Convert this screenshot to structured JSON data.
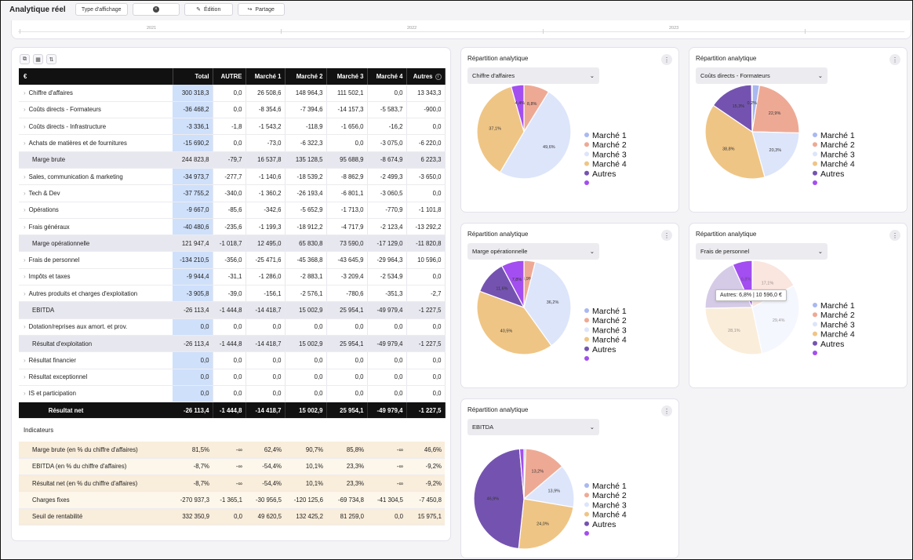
{
  "header": {
    "title": "Analytique réel",
    "display_type_label": "Type d'affichage",
    "edit_label": "Édition",
    "share_label": "Partage"
  },
  "timeline": {
    "years": [
      "2021",
      "2022",
      "2023"
    ]
  },
  "table": {
    "columns": [
      "€",
      "Total",
      "AUTRE",
      "Marché 1",
      "Marché 2",
      "Marché 3",
      "Marché 4",
      "Autres"
    ],
    "rows": [
      {
        "label": "Chiffre d'affaires",
        "type": "line",
        "values": [
          "300 318,3",
          "0,0",
          "26 508,6",
          "148 964,3",
          "111 502,1",
          "0,0",
          "13 343,3"
        ]
      },
      {
        "label": "Coûts directs - Formateurs",
        "type": "line",
        "values": [
          "-36 468,2",
          "0,0",
          "-8 354,6",
          "-7 394,6",
          "-14 157,3",
          "-5 583,7",
          "-900,0"
        ]
      },
      {
        "label": "Coûts directs - Infrastructure",
        "type": "line",
        "values": [
          "-3 336,1",
          "-1,8",
          "-1 543,2",
          "-118,9",
          "-1 656,0",
          "-16,2",
          "0,0"
        ]
      },
      {
        "label": "Achats de matières et de fournitures",
        "type": "line",
        "values": [
          "-15 690,2",
          "0,0",
          "-73,0",
          "-6 322,3",
          "0,0",
          "-3 075,0",
          "-6 220,0"
        ]
      },
      {
        "label": "Marge brute",
        "type": "sub",
        "values": [
          "244 823,8",
          "-79,7",
          "16 537,8",
          "135 128,5",
          "95 688,9",
          "-8 674,9",
          "6 223,3"
        ]
      },
      {
        "label": "Sales, communication & marketing",
        "type": "line",
        "values": [
          "-34 973,7",
          "-277,7",
          "-1 140,6",
          "-18 539,2",
          "-8 862,9",
          "-2 499,3",
          "-3 650,0"
        ]
      },
      {
        "label": "Tech & Dev",
        "type": "line",
        "values": [
          "-37 755,2",
          "-340,0",
          "-1 360,2",
          "-26 193,4",
          "-6 801,1",
          "-3 060,5",
          "0,0"
        ]
      },
      {
        "label": "Opérations",
        "type": "line",
        "values": [
          "-9 667,0",
          "-85,6",
          "-342,6",
          "-5 652,9",
          "-1 713,0",
          "-770,9",
          "-1 101,8"
        ]
      },
      {
        "label": "Frais généraux",
        "type": "line",
        "values": [
          "-40 480,6",
          "-235,6",
          "-1 199,3",
          "-18 912,2",
          "-4 717,9",
          "-2 123,4",
          "-13 292,2"
        ]
      },
      {
        "label": "Marge opérationnelle",
        "type": "sub",
        "values": [
          "121 947,4",
          "-1 018,7",
          "12 495,0",
          "65 830,8",
          "73 590,0",
          "-17 129,0",
          "-11 820,8"
        ]
      },
      {
        "label": "Frais de personnel",
        "type": "line",
        "values": [
          "-134 210,5",
          "-356,0",
          "-25 471,6",
          "-45 368,8",
          "-43 645,9",
          "-29 964,3",
          "10 596,0"
        ]
      },
      {
        "label": "Impôts et taxes",
        "type": "line",
        "values": [
          "-9 944,4",
          "-31,1",
          "-1 286,0",
          "-2 883,1",
          "-3 209,4",
          "-2 534,9",
          "0,0"
        ]
      },
      {
        "label": "Autres produits et charges d'exploitation",
        "type": "line",
        "values": [
          "-3 905,8",
          "-39,0",
          "-156,1",
          "-2 576,1",
          "-780,6",
          "-351,3",
          "-2,7"
        ]
      },
      {
        "label": "EBITDA",
        "type": "sub",
        "values": [
          "-26 113,4",
          "-1 444,8",
          "-14 418,7",
          "15 002,9",
          "25 954,1",
          "-49 979,4",
          "-1 227,5"
        ]
      },
      {
        "label": "Dotation/reprises aux amort. et prov.",
        "type": "line",
        "values": [
          "0,0",
          "0,0",
          "0,0",
          "0,0",
          "0,0",
          "0,0",
          "0,0"
        ]
      },
      {
        "label": "Résultat d'exploitation",
        "type": "sub",
        "values": [
          "-26 113,4",
          "-1 444,8",
          "-14 418,7",
          "15 002,9",
          "25 954,1",
          "-49 979,4",
          "-1 227,5"
        ]
      },
      {
        "label": "Résultat financier",
        "type": "line",
        "values": [
          "0,0",
          "0,0",
          "0,0",
          "0,0",
          "0,0",
          "0,0",
          "0,0"
        ]
      },
      {
        "label": "Résultat exceptionnel",
        "type": "line",
        "values": [
          "0,0",
          "0,0",
          "0,0",
          "0,0",
          "0,0",
          "0,0",
          "0,0"
        ]
      },
      {
        "label": "IS et participation",
        "type": "line",
        "values": [
          "0,0",
          "0,0",
          "0,0",
          "0,0",
          "0,0",
          "0,0",
          "0,0"
        ]
      },
      {
        "label": "Résultat net",
        "type": "net",
        "values": [
          "-26 113,4",
          "-1 444,8",
          "-14 418,7",
          "15 002,9",
          "25 954,1",
          "-49 979,4",
          "-1 227,5"
        ]
      }
    ],
    "indicators_title": "Indicateurs",
    "indicators": [
      {
        "label": "Marge brute (en % du chiffre d'affaires)",
        "values": [
          "81,5%",
          "-∞",
          "62,4%",
          "90,7%",
          "85,8%",
          "-∞",
          "46,6%"
        ]
      },
      {
        "label": "EBITDA (en % du chiffre d'affaires)",
        "values": [
          "-8,7%",
          "-∞",
          "-54,4%",
          "10,1%",
          "23,3%",
          "-∞",
          "-9,2%"
        ]
      },
      {
        "label": "Résultat net (en % du chiffre d'affaires)",
        "values": [
          "-8,7%",
          "-∞",
          "-54,4%",
          "10,1%",
          "23,3%",
          "-∞",
          "-9,2%"
        ]
      },
      {
        "label": "Charges fixes",
        "values": [
          "-270 937,3",
          "-1 365,1",
          "-30 956,5",
          "-120 125,6",
          "-69 734,8",
          "-41 304,5",
          "-7 450,8"
        ]
      },
      {
        "label": "Seuil de rentabilité",
        "values": [
          "332 350,9",
          "0,0",
          "49 620,5",
          "132 425,2",
          "81 259,0",
          "0,0",
          "15 975,1"
        ]
      }
    ]
  },
  "colors": {
    "marche1": "#a9b8f0",
    "marche2": "#eea995",
    "marche3": "#dde5fb",
    "marche4": "#efc585",
    "autre": "#7453b0",
    "autres": "#a34ef0"
  },
  "legend": [
    "Marché 1",
    "Marché 2",
    "Marché 3",
    "Marché 4",
    "Autres"
  ],
  "cards": [
    {
      "title": "Répartition analytique",
      "select": "Chiffre d'affaires"
    },
    {
      "title": "Répartition analytique",
      "select": "Coûts directs - Formateurs"
    },
    {
      "title": "Répartition analytique",
      "select": "Marge opérationnelle"
    },
    {
      "title": "Répartition analytique",
      "select": "Frais de personnel"
    },
    {
      "title": "Répartition analytique",
      "select": "EBITDA"
    }
  ],
  "tooltip": "Autres: 6,8% | 10 596,0 €",
  "chart_data": [
    {
      "type": "pie",
      "labels": [
        "Marché 2",
        "Marché 3",
        "Marché 4",
        "Autres"
      ],
      "values": [
        8.8,
        49.6,
        37.1,
        4.4
      ],
      "label_texts": [
        "8,8%",
        "49,6%",
        "37,1%",
        "4,4%"
      ]
    },
    {
      "type": "pie",
      "labels": [
        "Marché 1",
        "Marché 2",
        "Marché 3",
        "Marché 4",
        "Autre",
        "Autres"
      ],
      "values": [
        2.5,
        22.9,
        20.3,
        38.8,
        15.3,
        0.2
      ],
      "label_texts": [
        "",
        "22,9%",
        "20,3%",
        "38,8%",
        "15,3%",
        "0,2%"
      ]
    },
    {
      "type": "pie",
      "labels": [
        "Marché 2",
        "Marché 3",
        "Marché 4",
        "Autre",
        "Autres"
      ],
      "values": [
        3.9,
        36.2,
        40.5,
        11.6,
        7.8
      ],
      "label_texts": [
        "3,9%",
        "36,2%",
        "40,5%",
        "11,6%",
        "7,8%"
      ]
    },
    {
      "type": "pie",
      "labels": [
        "Marché 1",
        "Marché 2",
        "Marché 3",
        "Marché 4",
        "Autre",
        "Autres"
      ],
      "values": [
        0.2,
        17.1,
        29.4,
        28.1,
        18.5,
        6.8
      ],
      "label_texts": [
        "",
        "17,1%",
        "29,4%",
        "28,1%",
        "18,5%",
        "6,8%"
      ]
    },
    {
      "type": "pie",
      "labels": [
        "Marché 1",
        "Marché 2",
        "Marché 3",
        "Marché 4",
        "Autre",
        "Autres"
      ],
      "values": [
        0.6,
        13.2,
        13.9,
        24.0,
        46.9,
        1.4
      ],
      "label_texts": [
        "",
        "13,2%",
        "13,9%",
        "24,0%",
        "46,9%",
        ""
      ]
    }
  ]
}
